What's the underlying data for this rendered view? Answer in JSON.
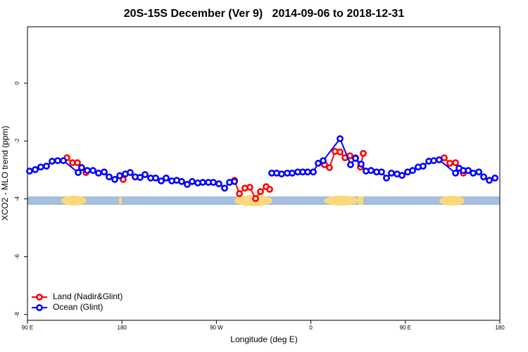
{
  "chart_data": {
    "type": "line",
    "title": "20S-15S December (Ver 9)   2014-09-06 to 2018-12-31",
    "x_label": "Longitude (deg E)",
    "y_label": "XCO2 - MLO trend (ppm)",
    "xlim": [
      90,
      540
    ],
    "xticks": [
      {
        "value": 90,
        "label": "90 E"
      },
      {
        "value": 180,
        "label": "180"
      },
      {
        "value": 270,
        "label": "90 W"
      },
      {
        "value": 360,
        "label": "0"
      },
      {
        "value": 450,
        "label": "90 E"
      },
      {
        "value": 540,
        "label": "180"
      }
    ],
    "ylim": [
      -8.2,
      1.95
    ],
    "yticks": [
      0,
      -2,
      -4,
      -6,
      -8
    ],
    "legend": "bottomleft",
    "series": [
      {
        "name": "Land (Nadir&Glint)",
        "color": "#ff0000",
        "x": [
          127.6,
          133,
          137.6,
          145.7,
          null,
          181.2,
          null,
          287.2,
          291.9,
          297.2,
          301.9,
          307.3,
          312,
          317.4,
          320.7,
          null,
          373,
          377.7,
          383,
          387.8,
          392.5,
          397.2,
          402.5,
          407.2,
          409.9,
          null,
          487,
          492.4,
          497.8,
          505.2
        ],
        "values": [
          -2.58,
          -2.75,
          -2.75,
          -3.09,
          null,
          -3.33,
          null,
          -3.36,
          -3.82,
          -3.63,
          -3.6,
          -3.99,
          -3.75,
          -3.58,
          -3.67,
          null,
          -2.82,
          -2.92,
          -2.36,
          -2.38,
          -2.58,
          -2.51,
          -2.58,
          -2.9,
          -2.43,
          null,
          -2.58,
          -2.77,
          -2.75,
          -3.11
        ]
      },
      {
        "name": "Ocean (Glint)",
        "color": "#0000ff",
        "x": [
          92,
          97.4,
          102.7,
          108.1,
          113.5,
          118.8,
          124.2,
          138.3,
          141.6,
          147,
          152.4,
          157.7,
          163.1,
          167.8,
          173.2,
          177.9,
          183.2,
          187.9,
          192.6,
          197.3,
          202,
          207.4,
          212.1,
          217.4,
          222.1,
          227.5,
          232.2,
          236.9,
          242.2,
          246.9,
          252.3,
          257,
          262.4,
          267.1,
          272.4,
          277.8,
          282.5,
          287.2,
          null,
          322.7,
          327.4,
          332.1,
          337.5,
          342.2,
          347.5,
          352.2,
          356.9,
          362.3,
          367,
          371.7,
          387.8,
          397.8,
          402.5,
          407.9,
          412.5,
          417.3,
          422.6,
          427.3,
          432,
          436.7,
          442.1,
          446.8,
          452.2,
          456.9,
          462.2,
          466.9,
          472.3,
          477,
          482.2,
          497.8,
          501.1,
          505.2,
          509.9,
          514.6,
          520,
          524.6,
          530,
          535.4
        ],
        "values": [
          -3.04,
          -2.99,
          -2.9,
          -2.87,
          -2.7,
          -2.68,
          -2.68,
          -3.09,
          -2.92,
          -3.02,
          -3.02,
          -3.11,
          -3.07,
          -3.24,
          -3.33,
          -3.2,
          -3.14,
          -3.09,
          -3.24,
          -3.26,
          -3.16,
          -3.28,
          -3.28,
          -3.38,
          -3.28,
          -3.38,
          -3.36,
          -3.4,
          -3.5,
          -3.4,
          -3.45,
          -3.43,
          -3.43,
          -3.43,
          -3.48,
          -3.63,
          -3.43,
          -3.4,
          null,
          -3.11,
          -3.11,
          -3.14,
          -3.11,
          -3.11,
          -3.07,
          -3.07,
          -3.07,
          -3.07,
          -2.77,
          -2.68,
          -1.92,
          -2.82,
          -2.6,
          -2.8,
          -3.04,
          -3.02,
          -3.07,
          -3.07,
          -3.28,
          -3.11,
          -3.14,
          -3.19,
          -3.07,
          -3.02,
          -2.9,
          -2.87,
          -2.7,
          -2.68,
          -2.65,
          -3.11,
          -2.94,
          -3.02,
          -3.02,
          -3.11,
          -3.07,
          -3.24,
          -3.36,
          -3.28
        ]
      }
    ]
  }
}
